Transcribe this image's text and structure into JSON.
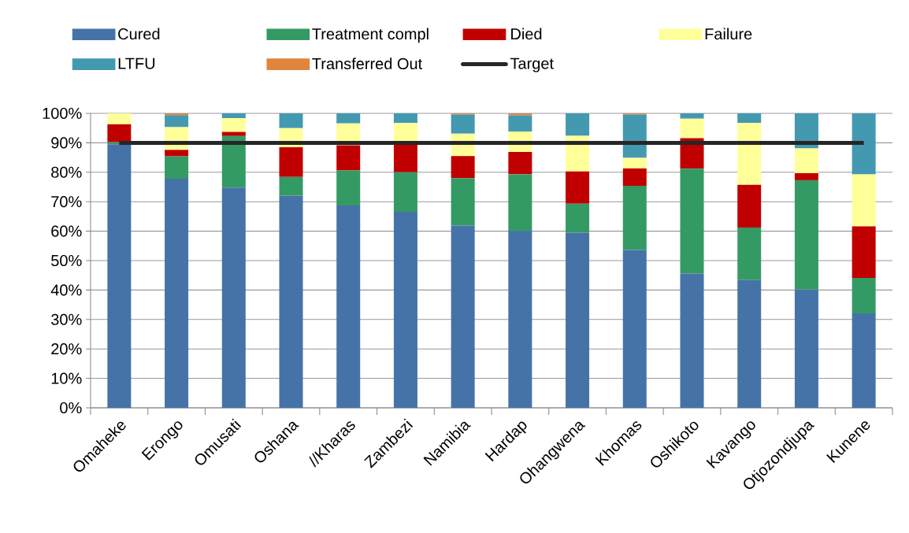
{
  "chart_data": {
    "type": "bar",
    "stacked": true,
    "grid": "y",
    "legend": "top",
    "categories": [
      "Omaheke",
      "Erongo",
      "Omusati",
      "Oshana",
      "//Kharas",
      "Zambezi",
      "Namibia",
      "Hardap",
      "Ohangwena",
      "Khomas",
      "Oshikoto",
      "Kavango",
      "Otjozondjupa",
      "Kunene"
    ],
    "ylim": [
      0,
      100
    ],
    "yticks": [
      {
        "value": 0,
        "label": "0%"
      },
      {
        "value": 10,
        "label": "10%"
      },
      {
        "value": 20,
        "label": "20%"
      },
      {
        "value": 30,
        "label": "30%"
      },
      {
        "value": 40,
        "label": "40%"
      },
      {
        "value": 50,
        "label": "50%"
      },
      {
        "value": 60,
        "label": "60%"
      },
      {
        "value": 70,
        "label": "70%"
      },
      {
        "value": 80,
        "label": "80%"
      },
      {
        "value": 90,
        "label": "90%"
      },
      {
        "value": 100,
        "label": "100%"
      }
    ],
    "series": [
      {
        "name": "Cured",
        "color": "#4573a7",
        "values": [
          89.5,
          77.8,
          74.8,
          72.0,
          68.7,
          66.6,
          61.9,
          60.1,
          59.5,
          53.6,
          45.6,
          43.4,
          40.2,
          32.1
        ]
      },
      {
        "name": "Treatment compl",
        "color": "#349a64",
        "values": [
          0.7,
          7.6,
          17.5,
          6.4,
          11.9,
          13.4,
          16.1,
          19.2,
          9.8,
          21.8,
          35.6,
          17.8,
          37.1,
          12.0
        ]
      },
      {
        "name": "Died",
        "color": "#c00000",
        "values": [
          6.1,
          2.2,
          1.4,
          10.1,
          8.6,
          10.0,
          7.5,
          7.6,
          11.0,
          5.9,
          10.4,
          14.5,
          2.4,
          17.5
        ]
      },
      {
        "name": "Failure",
        "color": "#ffff99",
        "values": [
          3.7,
          7.7,
          4.7,
          6.5,
          7.4,
          6.7,
          7.6,
          6.9,
          12.1,
          3.6,
          6.6,
          21.1,
          8.4,
          17.7
        ]
      },
      {
        "name": "LTFU",
        "color": "#4399b0",
        "values": [
          0,
          4.1,
          1.6,
          5.0,
          3.4,
          3.3,
          6.5,
          5.5,
          7.6,
          14.7,
          1.8,
          3.2,
          11.9,
          20.7
        ]
      },
      {
        "name": "Transferred Out",
        "color": "#e0853e",
        "values": [
          0,
          0.6,
          0,
          0,
          0,
          0,
          0.4,
          0.7,
          0,
          0.4,
          0,
          0,
          0,
          0
        ]
      },
      {
        "name": "Target",
        "type": "line",
        "color": "#262626",
        "values": [
          90,
          90,
          90,
          90,
          90,
          90,
          90,
          90,
          90,
          90,
          90,
          90,
          90,
          90
        ]
      }
    ]
  }
}
